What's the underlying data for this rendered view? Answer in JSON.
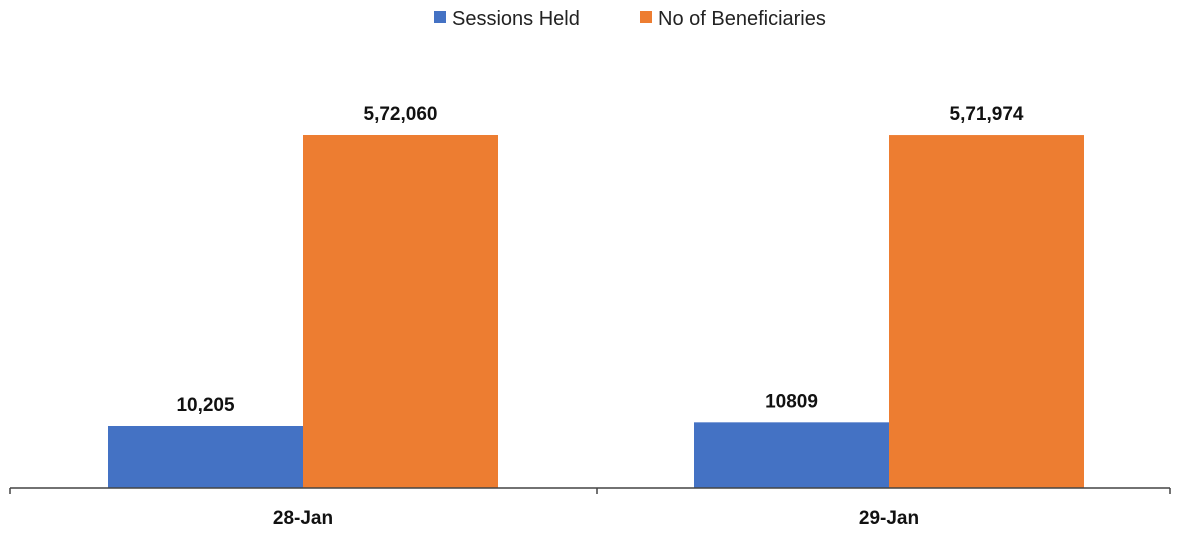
{
  "chart_data": {
    "type": "bar",
    "categories": [
      "28-Jan",
      "29-Jan"
    ],
    "series": [
      {
        "name": "Sessions Held",
        "color": "#4472C4",
        "values": [
          10205,
          10809
        ],
        "labels": [
          "10,205",
          "10809"
        ]
      },
      {
        "name": "No of Beneficiaries",
        "color": "#ED7D31",
        "values": [
          572060,
          571974
        ],
        "labels": [
          "5,72,060",
          "5,71,974"
        ]
      }
    ],
    "legend_position": "top",
    "grid": false,
    "scales": "Sessions Held bars drawn on a separate scale from No of Beneficiaries bars"
  }
}
